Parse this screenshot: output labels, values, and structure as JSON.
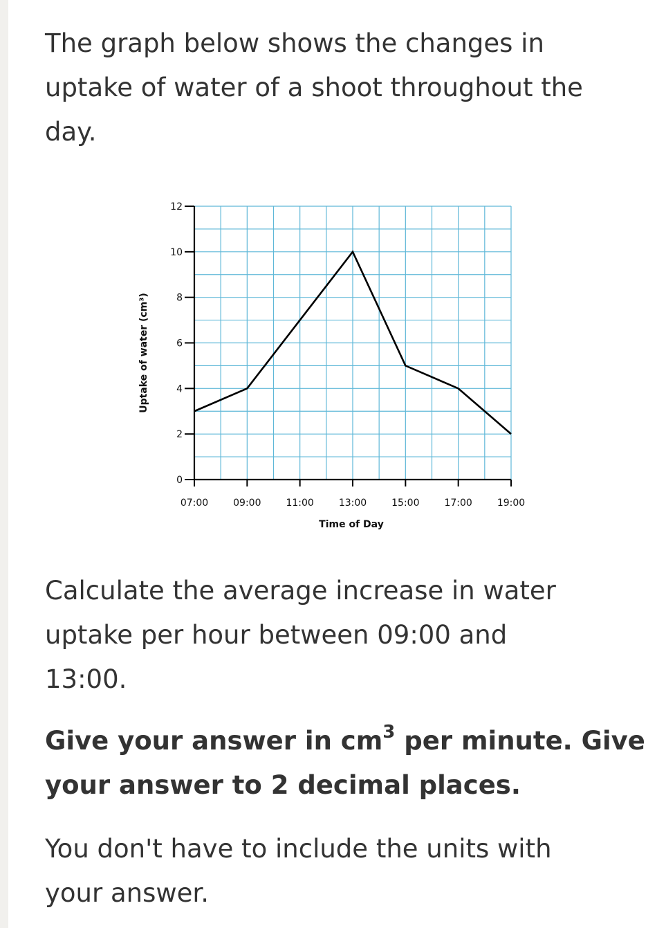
{
  "question": {
    "intro_lines": [
      "The graph below shows the changes in",
      "uptake of water of a shoot throughout the",
      "day."
    ],
    "task_lines": [
      "Calculate the average increase in water",
      "uptake per hour between 09:00 and",
      "13:00."
    ],
    "instruction_line1_pre": "Give your answer in cm",
    "instruction_line1_sup": "3",
    "instruction_line1_post": " per minute. Give",
    "instruction_line2": "your answer to 2 decimal places.",
    "note_lines": [
      "You don't have to include the units with",
      "your answer."
    ]
  },
  "colors": {
    "grid": "#5fb8d8",
    "line": "#000000",
    "text": "#333333"
  },
  "chart_data": {
    "type": "line",
    "xlabel": "Time of Day",
    "ylabel": "Uptake of water (cm³)",
    "x": [
      "07:00",
      "09:00",
      "11:00",
      "13:00",
      "15:00",
      "17:00",
      "19:00"
    ],
    "values": [
      3,
      4,
      7,
      10,
      5,
      4,
      2
    ],
    "x_tick_labels": [
      "07:00",
      "09:00",
      "11:00",
      "13:00",
      "15:00",
      "17:00",
      "19:00"
    ],
    "y_tick_labels": [
      "0",
      "2",
      "4",
      "6",
      "8",
      "10",
      "12"
    ],
    "xlim": [
      "07:00",
      "19:00"
    ],
    "ylim": [
      0,
      12
    ],
    "grid": true,
    "grid_minor_x": "1 hour",
    "grid_minor_y": 1
  }
}
